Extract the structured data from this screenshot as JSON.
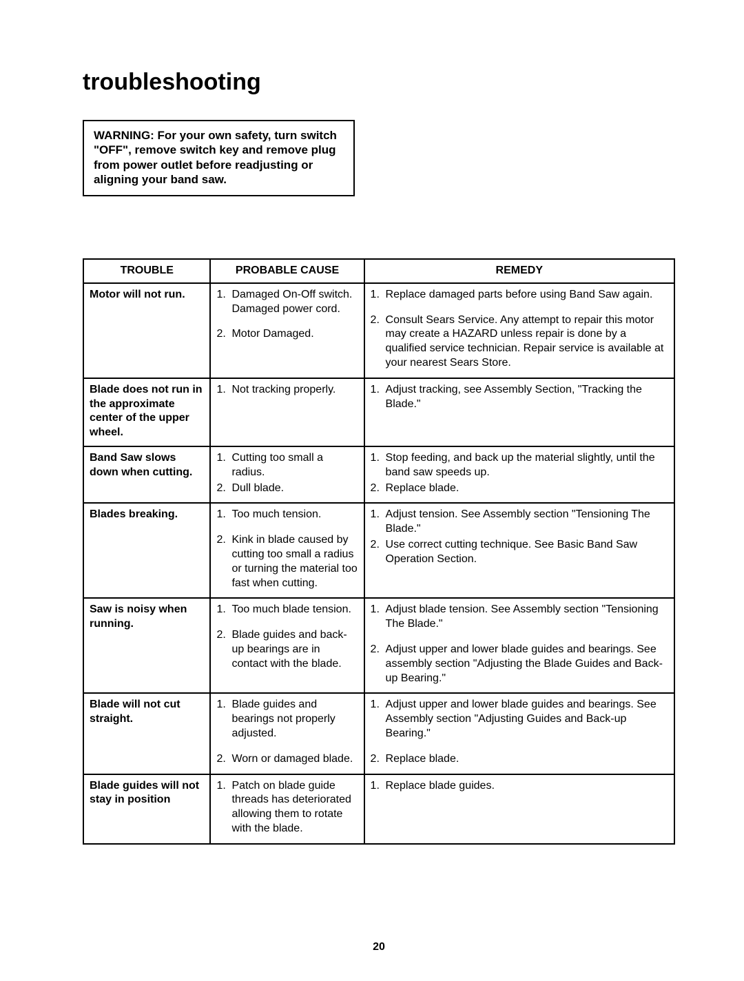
{
  "title": "troubleshooting",
  "warning": "WARNING: For your own safety, turn switch \"OFF\", remove switch key  and remove plug from power outlet before readjusting or aligning your band saw.",
  "headers": {
    "trouble": "TROUBLE",
    "cause": "PROBABLE CAUSE",
    "remedy": "REMEDY"
  },
  "rows": [
    {
      "trouble": "Motor will not run.",
      "causes": [
        "Damaged On-Off switch. Damaged power cord.",
        "Motor Damaged."
      ],
      "remedies": [
        "Replace damaged parts before using Band Saw again.",
        "Consult Sears Service. Any attempt to repair this motor may create a HAZARD unless repair is done by a qualified service technician. Repair service is available at your nearest Sears Store."
      ],
      "spaced": true
    },
    {
      "trouble": "Blade does not run in the approximate center of the upper wheel.",
      "causes": [
        "Not tracking properly."
      ],
      "remedies": [
        "Adjust tracking, see Assembly Section, \"Tracking the Blade.\""
      ]
    },
    {
      "trouble": "Band Saw slows down when cutting.",
      "causes": [
        "Cutting too small a radius.",
        "Dull blade."
      ],
      "remedies": [
        "Stop feeding, and back up the material slightly, until the band saw speeds up.",
        "Replace blade."
      ]
    },
    {
      "trouble": "Blades breaking.",
      "causes": [
        "Too much tension.",
        "Kink in blade caused by cutting too small a radius or turning the material too fast when cutting."
      ],
      "remedies": [
        "Adjust tension. See Assembly section \"Tensioning The Blade.\"",
        "Use correct cutting technique. See Basic Band Saw Operation Section."
      ],
      "causeSpaced": true
    },
    {
      "trouble": "Saw is noisy when running.",
      "causes": [
        "Too much blade tension.",
        "Blade guides and back-up bearings are in contact with the blade."
      ],
      "remedies": [
        "Adjust blade tension. See Assembly section \"Tensioning The Blade.\"",
        "Adjust upper and lower blade guides and bearings. See assembly section \"Adjusting the Blade Guides and Back-up Bearing.\""
      ],
      "spaced": true
    },
    {
      "trouble": "Blade will not cut straight.",
      "causes": [
        "Blade guides and bearings not properly adjusted.",
        "Worn or damaged blade."
      ],
      "remedies": [
        "Adjust upper and lower blade guides and bearings. See Assembly section \"Adjusting Guides and Back-up Bearing.\"",
        "Replace blade."
      ],
      "spaced": true
    },
    {
      "trouble": "Blade guides will not stay in position",
      "causes": [
        "Patch on blade guide threads has deteriorated allowing them to rotate with the blade."
      ],
      "remedies": [
        "Replace blade guides."
      ]
    }
  ],
  "pageNumber": "20"
}
